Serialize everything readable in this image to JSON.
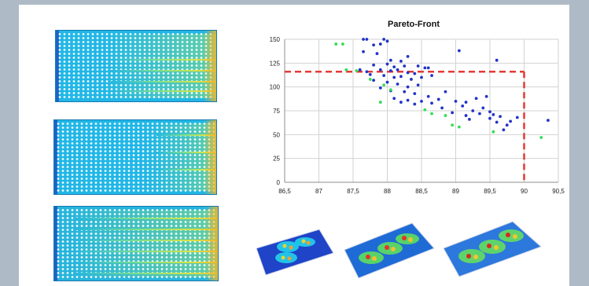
{
  "chart_data": {
    "type": "scatter",
    "title": "Pareto-Front",
    "xlabel": "",
    "ylabel": "",
    "xlim": [
      86.5,
      90.5
    ],
    "ylim": [
      0,
      150
    ],
    "x_ticks": [
      "86,5",
      "87",
      "87,5",
      "88",
      "88,5",
      "89",
      "89,5",
      "90",
      "90,5"
    ],
    "y_ticks": [
      "0",
      "25",
      "50",
      "75",
      "100",
      "125",
      "150"
    ],
    "grid": true,
    "legend": "none",
    "colors": {
      "blue": "#2233c9",
      "green": "#33dd55",
      "threshold": "#e53935"
    },
    "series": [
      {
        "color": "#2233c9",
        "points": [
          [
            87.65,
            150
          ],
          [
            87.7,
            150
          ],
          [
            87.95,
            150
          ],
          [
            88.0,
            148
          ],
          [
            87.9,
            145
          ],
          [
            87.8,
            144
          ],
          [
            87.65,
            137
          ],
          [
            87.85,
            135
          ],
          [
            88.3,
            132
          ],
          [
            88.05,
            128
          ],
          [
            88.2,
            127
          ],
          [
            89.6,
            128
          ],
          [
            87.8,
            123
          ],
          [
            88.0,
            124
          ],
          [
            88.1,
            121
          ],
          [
            88.25,
            122
          ],
          [
            88.45,
            122
          ],
          [
            88.6,
            120
          ],
          [
            87.6,
            118
          ],
          [
            87.7,
            116
          ],
          [
            87.9,
            118
          ],
          [
            88.05,
            117
          ],
          [
            88.15,
            118
          ],
          [
            88.3,
            115
          ],
          [
            88.4,
            114
          ],
          [
            88.55,
            120
          ],
          [
            89.05,
            138
          ],
          [
            87.75,
            113
          ],
          [
            87.95,
            112
          ],
          [
            88.1,
            110
          ],
          [
            88.2,
            111
          ],
          [
            88.35,
            108
          ],
          [
            88.5,
            110
          ],
          [
            88.65,
            112
          ],
          [
            87.8,
            107
          ],
          [
            88.0,
            105
          ],
          [
            88.15,
            103
          ],
          [
            88.3,
            100
          ],
          [
            88.45,
            102
          ],
          [
            87.9,
            99
          ],
          [
            88.05,
            96
          ],
          [
            88.25,
            95
          ],
          [
            88.4,
            93
          ],
          [
            88.6,
            90
          ],
          [
            88.85,
            95
          ],
          [
            88.1,
            88
          ],
          [
            88.3,
            86
          ],
          [
            88.5,
            85
          ],
          [
            88.75,
            87
          ],
          [
            88.2,
            84
          ],
          [
            88.4,
            82
          ],
          [
            88.65,
            83
          ],
          [
            89.0,
            85
          ],
          [
            89.15,
            84
          ],
          [
            89.3,
            88
          ],
          [
            89.45,
            90
          ],
          [
            88.8,
            78
          ],
          [
            89.1,
            80
          ],
          [
            89.25,
            75
          ],
          [
            89.4,
            78
          ],
          [
            89.5,
            74
          ],
          [
            88.95,
            73
          ],
          [
            89.15,
            70
          ],
          [
            89.35,
            72
          ],
          [
            89.55,
            71
          ],
          [
            89.65,
            69
          ],
          [
            89.2,
            66
          ],
          [
            89.5,
            67
          ],
          [
            89.6,
            63
          ],
          [
            89.75,
            60
          ],
          [
            89.8,
            64
          ],
          [
            89.9,
            68
          ],
          [
            89.7,
            55
          ],
          [
            90.35,
            65
          ]
        ]
      },
      {
        "color": "#33dd55",
        "points": [
          [
            87.25,
            145
          ],
          [
            87.35,
            145
          ],
          [
            87.4,
            118
          ],
          [
            87.55,
            117
          ],
          [
            87.75,
            108
          ],
          [
            87.95,
            102
          ],
          [
            88.05,
            97
          ],
          [
            87.9,
            84
          ],
          [
            88.55,
            76
          ],
          [
            88.65,
            72
          ],
          [
            88.85,
            70
          ],
          [
            88.95,
            60
          ],
          [
            89.05,
            58
          ],
          [
            89.55,
            53
          ],
          [
            90.25,
            47
          ]
        ]
      }
    ],
    "annotations": [
      {
        "type": "threshold",
        "x": 90.0,
        "y": 116,
        "color": "#e53935",
        "style": "dashed"
      }
    ]
  }
}
